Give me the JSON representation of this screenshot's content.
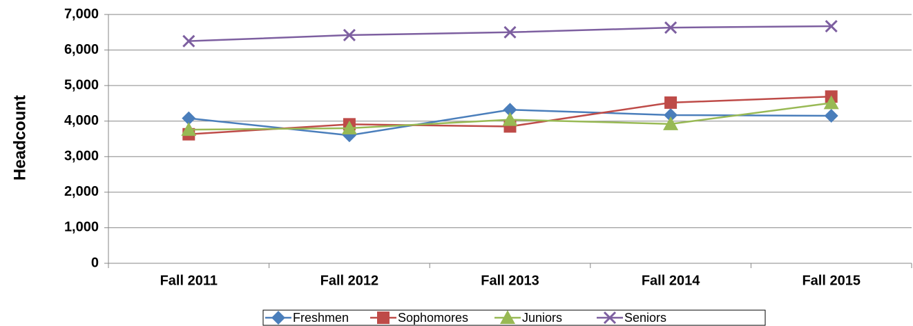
{
  "chart_data": {
    "type": "line",
    "y_label": "Headcount",
    "categories": [
      "Fall 2011",
      "Fall 2012",
      "Fall 2013",
      "Fall 2014",
      "Fall 2015"
    ],
    "series": [
      {
        "name": "Freshmen",
        "color": "#4a7ebb",
        "marker": "diamond",
        "values": [
          4080,
          3600,
          4320,
          4170,
          4150
        ]
      },
      {
        "name": "Sophomores",
        "color": "#be4b48",
        "marker": "square",
        "values": [
          3630,
          3910,
          3850,
          4520,
          4690
        ]
      },
      {
        "name": "Juniors",
        "color": "#98b954",
        "marker": "triangle",
        "values": [
          3760,
          3800,
          4040,
          3920,
          4510
        ]
      },
      {
        "name": "Seniors",
        "color": "#7d5fa0",
        "marker": "x",
        "values": [
          6250,
          6420,
          6500,
          6630,
          6670
        ]
      }
    ],
    "ylim": [
      0,
      7000
    ],
    "yticks": [
      0,
      {
        "value": 1000,
        "label": "1,000"
      },
      {
        "value": 2000,
        "label": "2,000"
      },
      {
        "value": 3000,
        "label": "3,000"
      },
      {
        "value": 4000,
        "label": "4,000"
      },
      {
        "value": 5000,
        "label": "5,000"
      },
      {
        "value": 6000,
        "label": "6,000"
      },
      {
        "value": 7000,
        "label": "7,000"
      }
    ],
    "grid": true,
    "legend": "bottom"
  }
}
